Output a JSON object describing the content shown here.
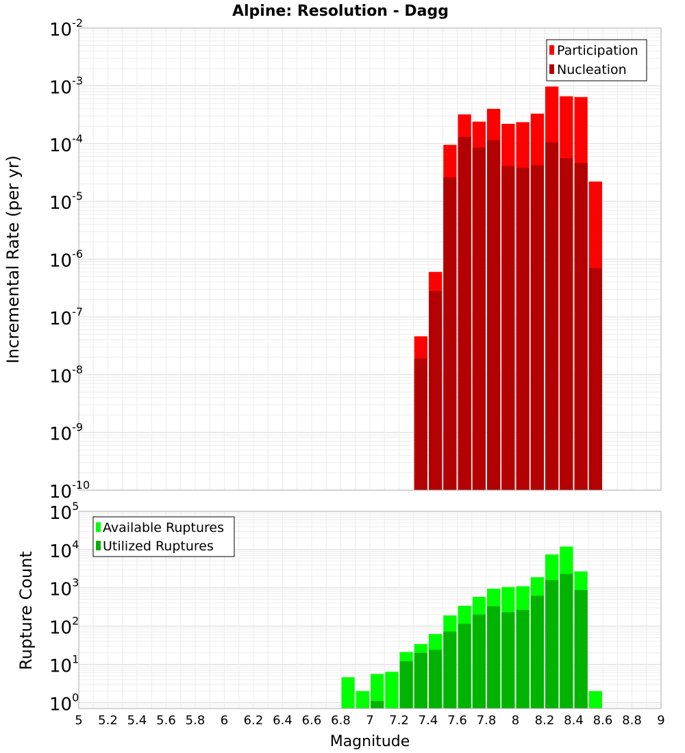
{
  "chart_data": [
    {
      "type": "bar",
      "title": "Alpine: Resolution - Dagg",
      "ylabel": "Incremental Rate (per yr)",
      "xlabel": "",
      "yscale": "log",
      "ylim": [
        1e-10,
        0.01
      ],
      "xlim": [
        5,
        9
      ],
      "y_tick_exponents": [
        "-10",
        "-9",
        "-8",
        "-7",
        "-6",
        "-5",
        "-4",
        "-3",
        "-2"
      ],
      "y_tick_base": "10",
      "grid": true,
      "legend_position": "top-right",
      "bin_width": 0.1,
      "x": [
        7.35,
        7.45,
        7.55,
        7.65,
        7.75,
        7.85,
        7.95,
        8.05,
        8.15,
        8.25,
        8.35,
        8.45,
        8.55
      ],
      "series": [
        {
          "name": "Participation",
          "color": "#ff0000",
          "values": [
            4.6e-08,
            6e-07,
            9.5e-05,
            0.00032,
            0.00024,
            0.0004,
            0.00022,
            0.000235,
            0.00033,
            0.00097,
            0.00066,
            0.00064,
            2.2e-05
          ]
        },
        {
          "name": "Nucleation",
          "color": "#b30000",
          "values": [
            1.9e-08,
            2.8e-07,
            2.6e-05,
            0.00013,
            8.5e-05,
            0.000115,
            4.1e-05,
            3.8e-05,
            4.2e-05,
            0.000105,
            5.6e-05,
            4.6e-05,
            7e-07
          ]
        }
      ]
    },
    {
      "type": "bar",
      "title": "",
      "ylabel": "Rupture Count",
      "xlabel": "Magnitude",
      "yscale": "log",
      "ylim": [
        0.7,
        100000.0
      ],
      "xlim": [
        5,
        9
      ],
      "x_tick_labels": [
        "5",
        "5.2",
        "5.4",
        "5.6",
        "5.8",
        "6",
        "6.2",
        "6.4",
        "6.6",
        "6.8",
        "7",
        "7.2",
        "7.4",
        "7.6",
        "7.8",
        "8",
        "8.2",
        "8.4",
        "8.6",
        "8.8",
        "9"
      ],
      "y_tick_exponents": [
        "0",
        "1",
        "2",
        "3",
        "4",
        "5"
      ],
      "y_tick_base": "10",
      "grid": true,
      "legend_position": "top-left",
      "bin_width": 0.1,
      "x": [
        6.85,
        6.95,
        7.05,
        7.15,
        7.25,
        7.35,
        7.45,
        7.55,
        7.65,
        7.75,
        7.85,
        7.95,
        8.05,
        8.15,
        8.25,
        8.35,
        8.45,
        8.55
      ],
      "series": [
        {
          "name": "Available Ruptures",
          "color": "#00ff00",
          "values": [
            4.6,
            2.0,
            5.6,
            6.4,
            21,
            34,
            62,
            190,
            340,
            580,
            950,
            1050,
            1100,
            1900,
            7500,
            12000,
            2700,
            2.0
          ]
        },
        {
          "name": "Utilized Ruptures",
          "color": "#00b300",
          "values": [
            0,
            0,
            1.1,
            0,
            12,
            20,
            24,
            72,
            115,
            200,
            330,
            230,
            265,
            620,
            1600,
            2300,
            880,
            0
          ]
        }
      ]
    }
  ]
}
